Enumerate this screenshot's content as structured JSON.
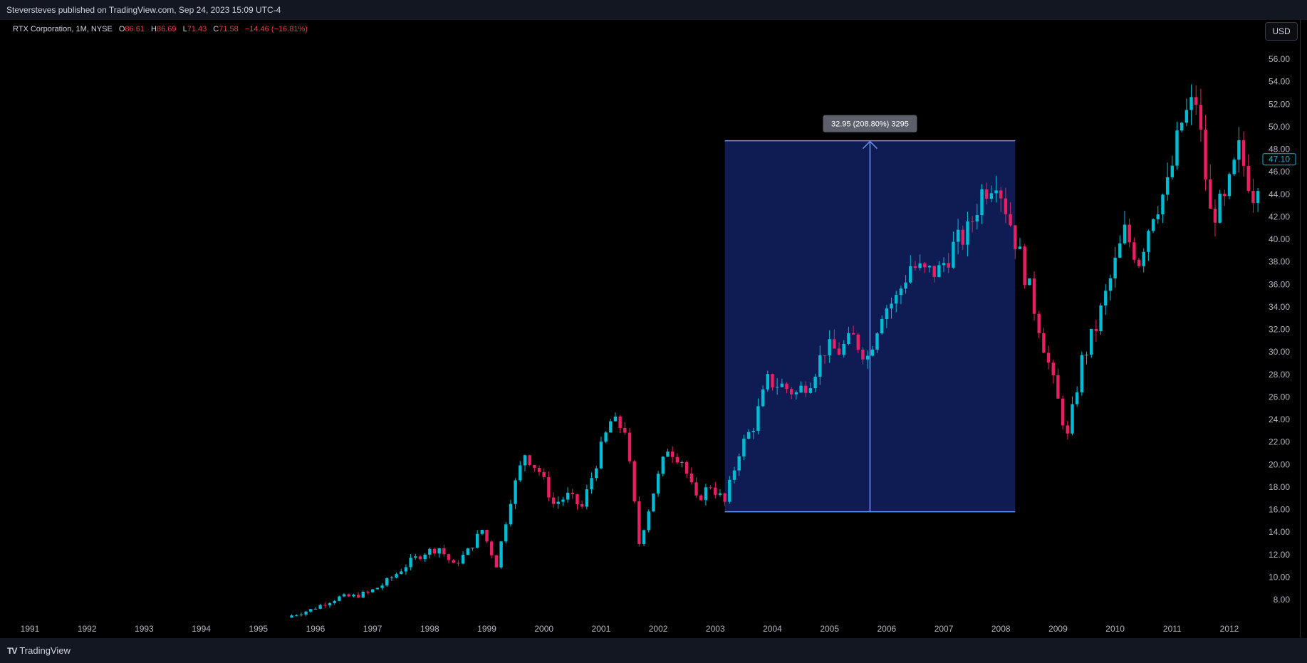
{
  "header": {
    "published_text": "Steversteves published on TradingView.com, Sep 24, 2023 15:09 UTC-4"
  },
  "legend": {
    "symbol": "RTX Corporation, 1M, NYSE",
    "open_label": "O",
    "open": "86.61",
    "high_label": "H",
    "high": "86.69",
    "low_label": "L",
    "low": "71.43",
    "close_label": "C",
    "close": "71.58",
    "change": "−14.46 (−16.81%)"
  },
  "currency": "USD",
  "footer": {
    "brand": "TradingView"
  },
  "colors": {
    "up": "#22ab94",
    "up_fill": "#00bcd4",
    "down": "#f23645",
    "down_fill": "#e91e63",
    "measure_fill": "#0f1f5c",
    "measure_line": "#6e94f0"
  },
  "chart_data": {
    "type": "candlestick",
    "title": "RTX Corporation, 1M, NYSE",
    "ylim": [
      6.5,
      57
    ],
    "y_ticks": [
      "56.00",
      "54.00",
      "52.00",
      "50.00",
      "48.00",
      "46.00",
      "44.00",
      "42.00",
      "40.00",
      "38.00",
      "36.00",
      "34.00",
      "32.00",
      "30.00",
      "28.00",
      "26.00",
      "24.00",
      "22.00",
      "20.00",
      "18.00",
      "16.00",
      "14.00",
      "12.00",
      "10.00",
      "8.00"
    ],
    "x_ticks": [
      "1991",
      "1992",
      "1993",
      "1994",
      "1995",
      "1996",
      "1997",
      "1998",
      "1999",
      "2000",
      "2001",
      "2002",
      "2003",
      "2004",
      "2005",
      "2006",
      "2007",
      "2008",
      "2009",
      "2010",
      "2011",
      "2012"
    ],
    "last_price_label": "47.10",
    "measure": {
      "label": "32.95 (208.80%) 3295",
      "from_price": 15.8,
      "to_price": 48.75,
      "from_date": "2003-03",
      "to_date": "2008-04"
    },
    "closes": [
      {
        "t": "1995-08",
        "c": 6.6
      },
      {
        "t": "1995-12",
        "c": 7.1
      },
      {
        "t": "1996-03",
        "c": 7.7
      },
      {
        "t": "1996-06",
        "c": 8.2
      },
      {
        "t": "1996-09",
        "c": 8.3
      },
      {
        "t": "1996-12",
        "c": 8.6
      },
      {
        "t": "1997-03",
        "c": 9.3
      },
      {
        "t": "1997-06",
        "c": 10.3
      },
      {
        "t": "1997-09",
        "c": 11.4
      },
      {
        "t": "1997-12",
        "c": 12.2
      },
      {
        "t": "1998-03",
        "c": 12.6
      },
      {
        "t": "1998-06",
        "c": 11.0
      },
      {
        "t": "1998-09",
        "c": 12.3
      },
      {
        "t": "1998-12",
        "c": 14.2
      },
      {
        "t": "1999-03",
        "c": 11.1
      },
      {
        "t": "1999-06",
        "c": 17.0
      },
      {
        "t": "1999-09",
        "c": 21.0
      },
      {
        "t": "1999-12",
        "c": 19.4
      },
      {
        "t": "2000-03",
        "c": 16.5
      },
      {
        "t": "2000-06",
        "c": 17.2
      },
      {
        "t": "2000-09",
        "c": 16.2
      },
      {
        "t": "2000-12",
        "c": 20.2
      },
      {
        "t": "2001-03",
        "c": 23.8
      },
      {
        "t": "2001-06",
        "c": 23.2
      },
      {
        "t": "2001-09",
        "c": 13.0
      },
      {
        "t": "2001-12",
        "c": 17.6
      },
      {
        "t": "2002-03",
        "c": 21.5
      },
      {
        "t": "2002-06",
        "c": 20.4
      },
      {
        "t": "2002-09",
        "c": 16.8
      },
      {
        "t": "2002-12",
        "c": 18.2
      },
      {
        "t": "2003-03",
        "c": 16.6
      },
      {
        "t": "2003-06",
        "c": 21.2
      },
      {
        "t": "2003-09",
        "c": 23.5
      },
      {
        "t": "2003-12",
        "c": 27.4
      },
      {
        "t": "2004-03",
        "c": 27.0
      },
      {
        "t": "2004-06",
        "c": 26.3
      },
      {
        "t": "2004-09",
        "c": 27.6
      },
      {
        "t": "2004-12",
        "c": 30.3
      },
      {
        "t": "2005-03",
        "c": 30.1
      },
      {
        "t": "2005-06",
        "c": 31.2
      },
      {
        "t": "2005-09",
        "c": 29.6
      },
      {
        "t": "2005-12",
        "c": 33.7
      },
      {
        "t": "2006-03",
        "c": 34.7
      },
      {
        "t": "2006-06",
        "c": 37.7
      },
      {
        "t": "2006-09",
        "c": 37.0
      },
      {
        "t": "2006-12",
        "c": 37.2
      },
      {
        "t": "2007-03",
        "c": 39.3
      },
      {
        "t": "2007-06",
        "c": 40.6
      },
      {
        "t": "2007-09",
        "c": 44.2
      },
      {
        "t": "2007-12",
        "c": 45.7
      },
      {
        "t": "2008-03",
        "c": 41.5
      },
      {
        "t": "2008-06",
        "c": 37.0
      },
      {
        "t": "2008-09",
        "c": 32.4
      },
      {
        "t": "2008-12",
        "c": 27.2
      },
      {
        "t": "2009-03",
        "c": 22.4
      },
      {
        "t": "2009-06",
        "c": 29.2
      },
      {
        "t": "2009-09",
        "c": 32.2
      },
      {
        "t": "2009-12",
        "c": 36.4
      },
      {
        "t": "2010-03",
        "c": 40.6
      },
      {
        "t": "2010-06",
        "c": 38.2
      },
      {
        "t": "2010-09",
        "c": 42.6
      },
      {
        "t": "2010-12",
        "c": 44.6
      },
      {
        "t": "2011-03",
        "c": 50.4
      },
      {
        "t": "2011-06",
        "c": 52.4
      },
      {
        "t": "2011-09",
        "c": 42.2
      },
      {
        "t": "2011-12",
        "c": 43.1
      },
      {
        "t": "2012-03",
        "c": 47.8
      },
      {
        "t": "2012-06",
        "c": 44.2
      },
      {
        "t": "2012-08",
        "c": 47.1
      }
    ]
  }
}
